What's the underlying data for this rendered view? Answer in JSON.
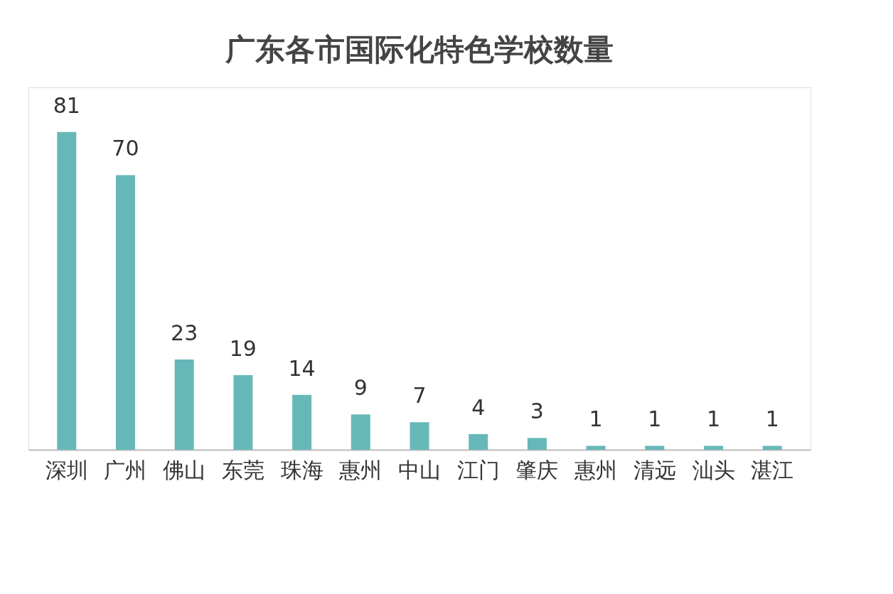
{
  "chart_data": {
    "type": "bar",
    "title": "广东各市国际化特色学校数量",
    "categories": [
      "深圳",
      "广州",
      "佛山",
      "东莞",
      "珠海",
      "惠州",
      "中山",
      "江门",
      "肇庆",
      "惠州",
      "清远",
      "汕头",
      "湛江"
    ],
    "values": [
      81,
      70,
      23,
      19,
      14,
      9,
      7,
      4,
      3,
      1,
      1,
      1,
      1
    ],
    "color": "#66b8b8",
    "tick_labels": "x",
    "data_labels": true,
    "grid": false
  }
}
